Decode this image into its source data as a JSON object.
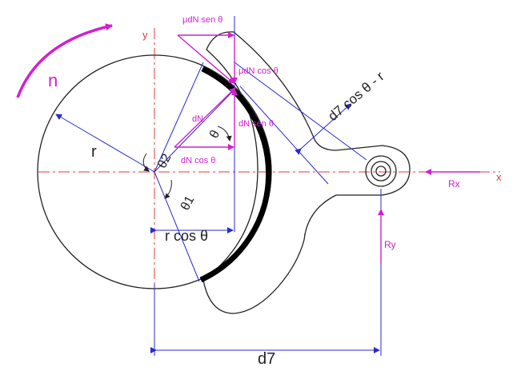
{
  "diagram": {
    "labels": {
      "rotation": "n",
      "y_axis": "y",
      "x_axis": "x",
      "radius": "r",
      "theta2": "θ2",
      "theta1": "θ1",
      "theta": "θ",
      "r_cos_theta": "r cos θ",
      "d7": "d7",
      "d7_cos_theta_minus_r": "d7 cos θ - r",
      "dN": "dN",
      "dN_cos": "dN cos θ",
      "dN_sen": "dN sen θ",
      "mu_dN_sen": "μdN sen θ",
      "mu_dN_cos": "μdN cos θ",
      "Rx": "Rx",
      "Ry": "Ry"
    },
    "colors": {
      "outline": "#222222",
      "lining": "#000000",
      "force": "#d21fd2",
      "dimension": "#2a2ad6",
      "axis": "#e23a3a"
    }
  }
}
